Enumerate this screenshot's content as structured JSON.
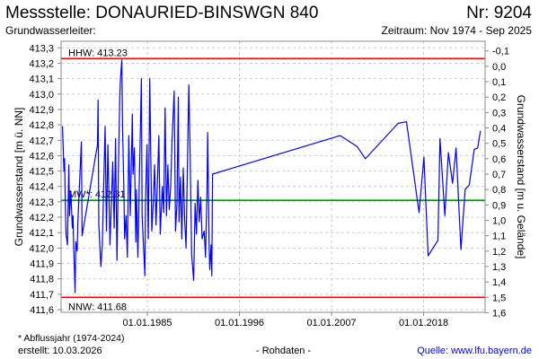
{
  "header": {
    "title": "Messstelle: DONAURIED-BINSWGN 840",
    "number": "Nr: 9204",
    "aquifer": "Grundwasserleiter:",
    "period": "Zeitraum: Nov 1974 - Sep 2025"
  },
  "footer": {
    "footnote": "* Abflussjahr (1974-2024)",
    "created": "erstellt:  10.03.2026",
    "raw": "- Rohdaten -",
    "source": "Quelle: www.lfu.bayern.de"
  },
  "colors": {
    "series": "#0000ff",
    "extreme": "#ff0000",
    "mean": "#009900",
    "grid": "#cccccc",
    "source_link": "#0000ee"
  },
  "chart_data": {
    "type": "line",
    "ylabel": "Grundwasserstand [m ü. NN]",
    "ylabel_right": "Grundwasserstand [m u. Gelände]",
    "ylim": [
      411.6,
      413.3
    ],
    "yticks": [
      "413,3",
      "413,2",
      "413,1",
      "413,0",
      "412,9",
      "412,8",
      "412,7",
      "412,6",
      "412,5",
      "412,4",
      "412,3",
      "412,2",
      "412,1",
      "412,0",
      "411,9",
      "411,8",
      "411,7",
      "411,6"
    ],
    "yticks_right": [
      "-0,1",
      "0,0",
      "0,1",
      "0,2",
      "0,3",
      "0,4",
      "0,5",
      "0,6",
      "0,7",
      "0,8",
      "0,9",
      "1,0",
      "1,1",
      "1,2",
      "1,3",
      "1,4",
      "1,5",
      "1,6"
    ],
    "xticks": [
      "01.01.1985",
      "01.01.1996",
      "01.01.2007",
      "01.01.2018"
    ],
    "grid": true,
    "reference_lines": [
      {
        "label": "HHW: 413.23",
        "value": 413.23,
        "color": "#ff0000"
      },
      {
        "label": "MW*: 412.31",
        "value": 412.31,
        "color": "#009900"
      },
      {
        "label": "NNW: 411.68",
        "value": 411.68,
        "color": "#ff0000"
      }
    ],
    "series": [
      {
        "points": [
          [
            "1974-11",
            412.79
          ],
          [
            "1974-12",
            412.64
          ],
          [
            "1975-01",
            412.5
          ],
          [
            "1975-02",
            412.58
          ],
          [
            "1975-03",
            412.29
          ],
          [
            "1975-04",
            412.09
          ],
          [
            "1975-06",
            412.02
          ],
          [
            "1975-08",
            412.54
          ],
          [
            "1975-09",
            412.21
          ],
          [
            "1975-11",
            412.37
          ],
          [
            "1976-01",
            412.13
          ],
          [
            "1976-02",
            412.21
          ],
          [
            "1976-03",
            412.02
          ],
          [
            "1976-05",
            411.71
          ],
          [
            "1976-06",
            412.04
          ],
          [
            "1976-08",
            411.98
          ],
          [
            "1976-09",
            412.17
          ],
          [
            "1976-12",
            412.48
          ],
          [
            "1977-02",
            412.69
          ],
          [
            "1977-03",
            412.08
          ],
          [
            "1979-01",
            412.67
          ],
          [
            "1979-02",
            412.96
          ],
          [
            "1979-03",
            412.15
          ],
          [
            "1979-06",
            411.88
          ],
          [
            "1979-08",
            412.02
          ],
          [
            "1979-10",
            412.4
          ],
          [
            "1979-12",
            412.79
          ],
          [
            "1980-02",
            412.11
          ],
          [
            "1980-04",
            412.67
          ],
          [
            "1980-07",
            412.02
          ],
          [
            "1980-09",
            412.29
          ],
          [
            "1980-11",
            412.56
          ],
          [
            "1981-01",
            412.13
          ],
          [
            "1981-03",
            412.71
          ],
          [
            "1981-05",
            411.92
          ],
          [
            "1981-07",
            412.5
          ],
          [
            "1981-09",
            412.98
          ],
          [
            "1981-10",
            413.1
          ],
          [
            "1981-12",
            413.22
          ],
          [
            "1982-01",
            412.79
          ],
          [
            "1982-03",
            412.35
          ],
          [
            "1982-04",
            412.06
          ],
          [
            "1982-06",
            412.21
          ],
          [
            "1982-08",
            411.94
          ],
          [
            "1982-10",
            412.73
          ],
          [
            "1982-12",
            412.21
          ],
          [
            "1983-03",
            412.87
          ],
          [
            "1983-04",
            412.48
          ],
          [
            "1983-06",
            412.65
          ],
          [
            "1983-08",
            412.04
          ],
          [
            "1983-09",
            412.38
          ],
          [
            "1983-11",
            411.94
          ],
          [
            "1984-01",
            412.44
          ],
          [
            "1984-04",
            413.1
          ],
          [
            "1984-05",
            412.21
          ],
          [
            "1984-07",
            412.02
          ],
          [
            "1984-09",
            411.82
          ],
          [
            "1984-10",
            412.31
          ],
          [
            "1984-12",
            412.67
          ],
          [
            "1985-02",
            412.06
          ],
          [
            "1985-04",
            413.1
          ],
          [
            "1985-07",
            412.11
          ],
          [
            "1985-09",
            412.29
          ],
          [
            "1985-11",
            412.54
          ],
          [
            "1986-01",
            412.15
          ],
          [
            "1986-03",
            412.42
          ],
          [
            "1986-05",
            412.73
          ],
          [
            "1986-07",
            412.09
          ],
          [
            "1986-10",
            412.4
          ],
          [
            "1986-12",
            412.23
          ],
          [
            "1987-02",
            412.91
          ],
          [
            "1987-04",
            412.21
          ],
          [
            "1987-06",
            412.54
          ],
          [
            "1987-08",
            412.25
          ],
          [
            "1987-10",
            412.4
          ],
          [
            "1987-12",
            412.71
          ],
          [
            "1988-03",
            413.02
          ],
          [
            "1988-05",
            412.11
          ],
          [
            "1988-07",
            412.29
          ],
          [
            "1988-09",
            412.98
          ],
          [
            "1988-10",
            412.17
          ],
          [
            "1988-12",
            412.46
          ],
          [
            "1989-02",
            412.06
          ],
          [
            "1989-04",
            412.52
          ],
          [
            "1989-06",
            412.19
          ],
          [
            "1989-08",
            412.0
          ],
          [
            "1989-10",
            412.52
          ],
          [
            "1989-12",
            413.06
          ],
          [
            "1990-02",
            412.6
          ],
          [
            "1990-04",
            411.96
          ],
          [
            "1990-07",
            411.79
          ],
          [
            "1990-09",
            412.29
          ],
          [
            "1990-11",
            412.09
          ],
          [
            "1991-01",
            412.44
          ],
          [
            "1991-03",
            412.17
          ],
          [
            "1991-05",
            412.33
          ],
          [
            "1991-07",
            412.06
          ],
          [
            "1991-10",
            412.11
          ],
          [
            "1991-12",
            411.94
          ],
          [
            "1992-02",
            412.37
          ],
          [
            "1992-03",
            412.75
          ],
          [
            "1992-05",
            412.04
          ],
          [
            "1992-06",
            411.86
          ],
          [
            "1992-08",
            412.02
          ],
          [
            "1992-09",
            411.82
          ],
          [
            "1992-10",
            412.48
          ],
          [
            "2008-01",
            412.73
          ],
          [
            "2010-01",
            412.66
          ],
          [
            "2011-01",
            412.58
          ],
          [
            "2014-12",
            412.81
          ],
          [
            "2015-12",
            412.82
          ],
          [
            "2017-06",
            412.23
          ],
          [
            "2018-01",
            412.59
          ],
          [
            "2018-07",
            411.95
          ],
          [
            "2019-09",
            412.05
          ],
          [
            "2019-12",
            412.71
          ],
          [
            "2020-07",
            412.21
          ],
          [
            "2020-12",
            412.62
          ],
          [
            "2021-06",
            412.42
          ],
          [
            "2021-11",
            412.65
          ],
          [
            "2022-06",
            411.99
          ],
          [
            "2022-12",
            412.38
          ],
          [
            "2023-06",
            412.41
          ],
          [
            "2024-01",
            412.64
          ],
          [
            "2024-06",
            412.65
          ],
          [
            "2024-10",
            412.76
          ]
        ]
      }
    ]
  }
}
